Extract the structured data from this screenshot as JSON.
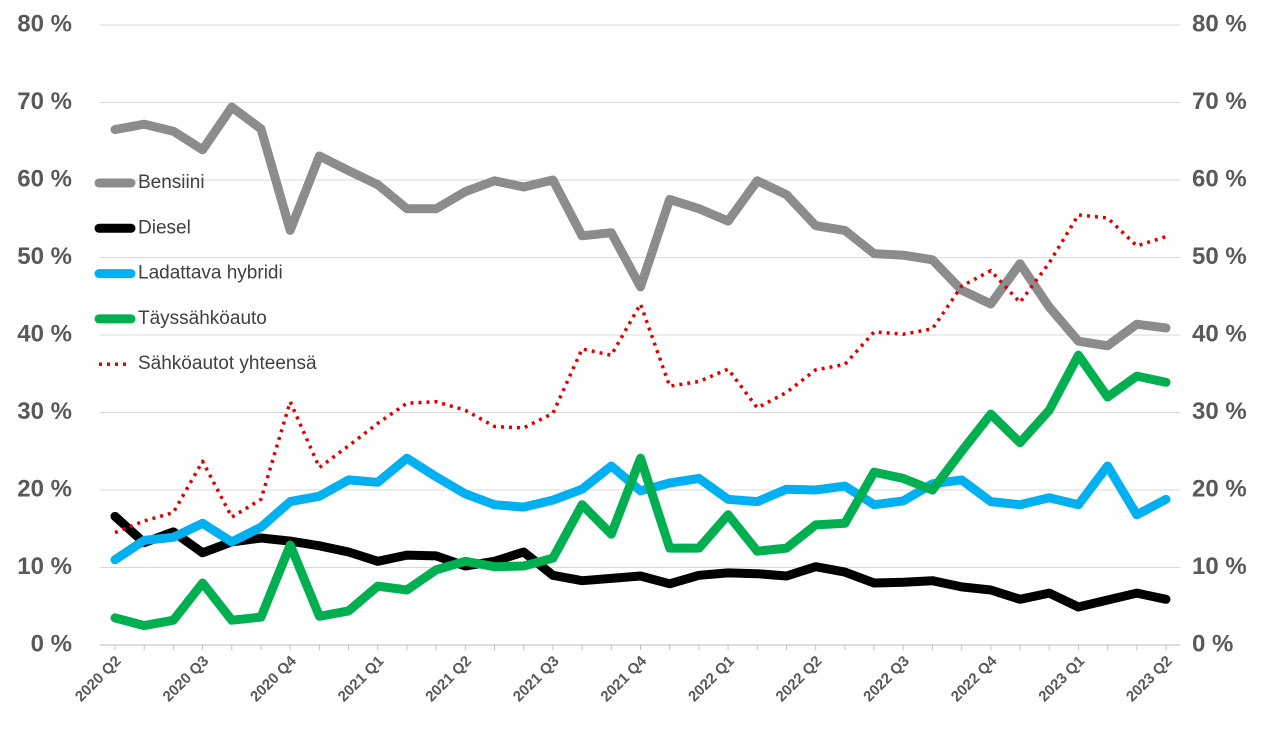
{
  "chart_data": {
    "type": "line",
    "categories": [
      "2020 Q2",
      null,
      null,
      "2020 Q3",
      null,
      null,
      "2020 Q4",
      null,
      null,
      "2021 Q1",
      null,
      null,
      "2021 Q2",
      null,
      null,
      "2021 Q3",
      null,
      null,
      "2021 Q4",
      null,
      null,
      "2022 Q1",
      null,
      null,
      "2022 Q2",
      null,
      null,
      "2022 Q3",
      null,
      null,
      "2022 Q4",
      null,
      null,
      "2023 Q1",
      null,
      null,
      "2023 Q2"
    ],
    "series": [
      {
        "name": "Bensiini",
        "color": "#8c8c8c",
        "style": "solid",
        "values": [
          66.5,
          67.2,
          66.3,
          63.9,
          69.4,
          66.6,
          53.5,
          63.1,
          61.2,
          59.4,
          56.3,
          56.3,
          58.5,
          59.9,
          59.1,
          60.0,
          52.8,
          53.2,
          46.2,
          57.5,
          56.3,
          54.7,
          59.9,
          58.1,
          54.1,
          53.5,
          50.5,
          50.3,
          49.7,
          45.8,
          44.0,
          49.2,
          43.6,
          39.2,
          38.6,
          41.4,
          40.9
        ]
      },
      {
        "name": "Diesel",
        "color": "#000000",
        "style": "solid",
        "values": [
          16.6,
          13.2,
          14.6,
          11.9,
          13.3,
          13.8,
          13.4,
          12.8,
          12.0,
          10.8,
          11.6,
          11.5,
          10.2,
          10.8,
          12.0,
          9.0,
          8.3,
          8.6,
          8.9,
          7.9,
          9.0,
          9.3,
          9.2,
          8.9,
          10.1,
          9.4,
          8.0,
          8.1,
          8.3,
          7.5,
          7.1,
          5.9,
          6.7,
          4.9,
          5.8,
          6.7,
          5.9
        ]
      },
      {
        "name": "Ladattava hybridi",
        "color": "#00b0f0",
        "style": "solid",
        "values": [
          11.0,
          13.5,
          13.9,
          15.7,
          13.3,
          15.2,
          18.5,
          19.2,
          21.3,
          21.0,
          24.1,
          21.7,
          19.5,
          18.1,
          17.8,
          18.7,
          20.1,
          23.1,
          19.9,
          20.9,
          21.5,
          18.8,
          18.5,
          20.1,
          20.0,
          20.5,
          18.1,
          18.6,
          20.8,
          21.3,
          18.5,
          18.1,
          19.0,
          18.1,
          23.1,
          16.8,
          18.8
        ]
      },
      {
        "name": "Täyssähköauto",
        "color": "#00b050",
        "style": "solid",
        "values": [
          3.5,
          2.5,
          3.2,
          8.0,
          3.2,
          3.6,
          12.9,
          3.7,
          4.4,
          7.6,
          7.1,
          9.7,
          10.8,
          10.1,
          10.2,
          11.2,
          18.1,
          14.3,
          24.1,
          12.5,
          12.5,
          16.8,
          12.1,
          12.5,
          15.5,
          15.7,
          22.3,
          21.5,
          20.0,
          25.0,
          29.8,
          26.1,
          30.3,
          37.4,
          32.0,
          34.7,
          33.9
        ]
      },
      {
        "name": "Sähköautot yhteensä",
        "color": "#e00000",
        "style": "dotted",
        "values": [
          14.5,
          16.0,
          17.1,
          23.7,
          16.5,
          18.8,
          31.4,
          22.9,
          25.7,
          28.6,
          31.2,
          31.4,
          30.3,
          28.2,
          28.0,
          29.9,
          38.2,
          37.4,
          44.0,
          33.4,
          34.0,
          35.6,
          30.6,
          32.6,
          35.5,
          36.2,
          40.4,
          40.1,
          40.8,
          46.3,
          48.3,
          44.2,
          49.3,
          55.5,
          55.1,
          51.5,
          52.7
        ]
      }
    ],
    "ylim": [
      0,
      80
    ],
    "yticks": [
      {
        "value": 0,
        "label": "0 %"
      },
      {
        "value": 10,
        "label": "10 %"
      },
      {
        "value": 20,
        "label": "20 %"
      },
      {
        "value": 30,
        "label": "30 %"
      },
      {
        "value": 40,
        "label": "40 %"
      },
      {
        "value": 50,
        "label": "50 %"
      },
      {
        "value": 60,
        "label": "60 %"
      },
      {
        "value": 70,
        "label": "70 %"
      },
      {
        "value": 80,
        "label": "80 %"
      }
    ],
    "y2lim": [
      0,
      80
    ],
    "y2ticks": [
      {
        "value": 0,
        "label": "0 %"
      },
      {
        "value": 10,
        "label": "10 %"
      },
      {
        "value": 20,
        "label": "20 %"
      },
      {
        "value": 30,
        "label": "30 %"
      },
      {
        "value": 40,
        "label": "40 %"
      },
      {
        "value": 50,
        "label": "50 %"
      },
      {
        "value": 60,
        "label": "60 %"
      },
      {
        "value": 70,
        "label": "70 %"
      },
      {
        "value": 80,
        "label": "80 %"
      }
    ],
    "grid": true,
    "legend": "left"
  }
}
